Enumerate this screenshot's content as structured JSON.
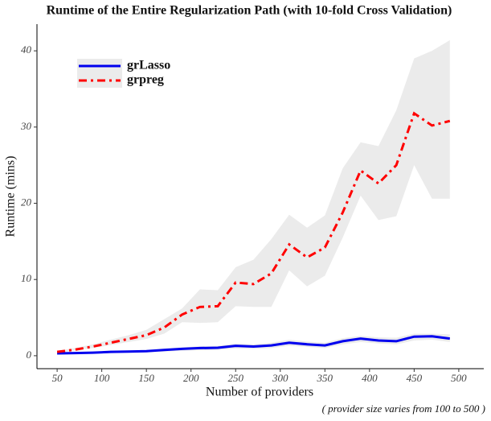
{
  "chart_data": {
    "type": "line",
    "title": "Runtime of the Entire Regularization Path (with 10-fold Cross Validation)",
    "xlabel": "Number of providers",
    "ylabel": "Runtime (mins)",
    "caption": "( provider size varies from 100 to 500 )",
    "x": [
      50,
      70,
      90,
      110,
      130,
      150,
      170,
      190,
      210,
      230,
      250,
      270,
      290,
      310,
      330,
      350,
      370,
      390,
      410,
      430,
      450,
      470,
      490
    ],
    "series": [
      {
        "name": "grLasso",
        "color": "#0000ee",
        "dash": "solid",
        "values": [
          0.3,
          0.35,
          0.4,
          0.5,
          0.55,
          0.6,
          0.75,
          0.9,
          1.0,
          1.05,
          1.3,
          1.2,
          1.35,
          1.7,
          1.5,
          1.35,
          1.9,
          2.25,
          2.0,
          1.9,
          2.5,
          2.55,
          2.25
        ],
        "lower": [
          0.2,
          0.25,
          0.3,
          0.35,
          0.4,
          0.45,
          0.55,
          0.65,
          0.7,
          0.75,
          0.95,
          0.9,
          1.0,
          1.3,
          1.15,
          1.0,
          1.5,
          1.8,
          1.6,
          1.5,
          2.0,
          2.1,
          1.8
        ],
        "upper": [
          0.4,
          0.45,
          0.5,
          0.65,
          0.7,
          0.75,
          0.95,
          1.1,
          1.25,
          1.3,
          1.6,
          1.5,
          1.7,
          2.1,
          1.85,
          1.7,
          2.3,
          2.6,
          2.4,
          2.35,
          2.9,
          2.9,
          2.8
        ]
      },
      {
        "name": "grpreg",
        "color": "#ff0000",
        "dash": "dashdot",
        "values": [
          0.5,
          0.8,
          1.2,
          1.7,
          2.2,
          2.7,
          3.7,
          5.4,
          6.4,
          6.5,
          9.6,
          9.4,
          10.8,
          14.6,
          12.9,
          14.2,
          18.8,
          24.3,
          22.6,
          25.0,
          31.8,
          30.2,
          30.8
        ],
        "lower": [
          0.4,
          0.7,
          1.0,
          1.4,
          1.8,
          2.2,
          2.9,
          4.4,
          4.3,
          4.4,
          6.5,
          6.4,
          6.4,
          11.2,
          9.1,
          10.5,
          15.5,
          21.0,
          17.8,
          18.3,
          25.0,
          20.6,
          20.6
        ],
        "upper": [
          0.6,
          1.0,
          1.5,
          2.1,
          2.7,
          3.4,
          4.8,
          6.2,
          8.7,
          8.6,
          11.6,
          12.6,
          15.3,
          18.5,
          16.8,
          18.4,
          24.6,
          28.0,
          27.5,
          32.2,
          39.0,
          40.0,
          41.4
        ]
      }
    ],
    "band_color": "#ebebeb",
    "xlim": [
      27.4,
      528
    ],
    "ylim": [
      -1.7,
      43.5
    ],
    "xticks": [
      50,
      100,
      150,
      200,
      250,
      300,
      350,
      400,
      450,
      500
    ],
    "yticks": [
      0,
      10,
      20,
      30,
      40
    ],
    "legend": "top-left",
    "grid": false
  }
}
